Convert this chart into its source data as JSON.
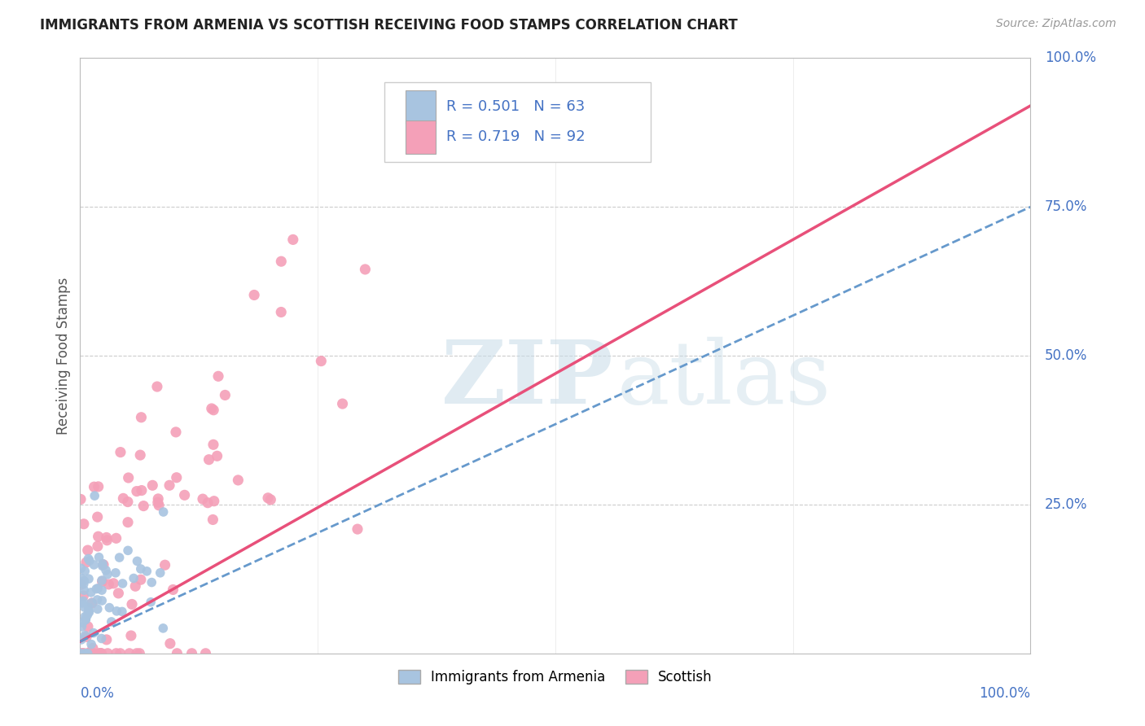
{
  "title": "IMMIGRANTS FROM ARMENIA VS SCOTTISH RECEIVING FOOD STAMPS CORRELATION CHART",
  "source": "Source: ZipAtlas.com",
  "ylabel": "Receiving Food Stamps",
  "armenia_R": 0.501,
  "armenia_N": 63,
  "scottish_R": 0.719,
  "scottish_N": 92,
  "armenia_color": "#a8c4e0",
  "scottish_color": "#f4a0b8",
  "armenia_line_color": "#6699cc",
  "scottish_line_color": "#e8507a",
  "background_color": "#ffffff",
  "grid_color": "#cccccc",
  "title_color": "#222222",
  "source_color": "#999999",
  "axis_label_color": "#4472c4",
  "watermark_color": "#c8dce8",
  "legend_text_color": "#4472c4"
}
